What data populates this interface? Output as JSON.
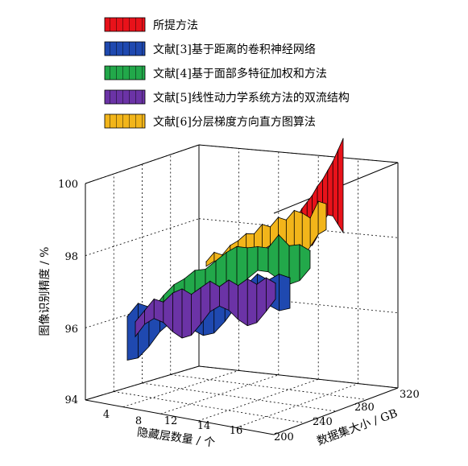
{
  "chart_data": {
    "type": "area",
    "title": "",
    "zlabel": "图像识别精度 / %",
    "xlabel": "隐藏层数量 / 个",
    "ylabel": "数据集大小 / GB",
    "zlim": [
      94,
      100
    ],
    "z_ticks": [
      "94",
      "96",
      "98",
      "100"
    ],
    "x_ticks": [
      "4",
      "8",
      "12",
      "14",
      "16"
    ],
    "y_ticks": [
      "200",
      "240",
      "280",
      "320"
    ],
    "grid": true,
    "legend_position": "top-left",
    "x": [
      4,
      5,
      6,
      7,
      8,
      9,
      10,
      11,
      12,
      13,
      14,
      15,
      16,
      17,
      18,
      19
    ],
    "series": [
      {
        "name": "所提方法",
        "color": "#e8121a",
        "values": [
          95.6,
          95.9,
          96.2,
          96.5,
          96.7,
          97.0,
          97.2,
          97.5,
          97.7,
          97.9,
          98.2,
          98.4,
          98.7,
          99.0,
          99.4,
          99.8
        ]
      },
      {
        "name": "文献[3]基于距离的卷积神经网络",
        "color": "#1f49b0",
        "values": [
          96.2,
          96.6,
          96.3,
          96.4,
          96.1,
          96.5,
          96.0,
          96.3,
          96.1,
          95.8,
          96.0,
          95.9,
          96.2,
          95.8,
          95.9,
          95.6
        ]
      },
      {
        "name": "文献[4]基于面部多特征加权和方法",
        "color": "#22a84a",
        "values": [
          96.1,
          96.5,
          96.8,
          96.9,
          97.1,
          97.0,
          97.2,
          97.4,
          97.5,
          97.3,
          97.2,
          97.0,
          97.4,
          96.8,
          96.7,
          96.3
        ]
      },
      {
        "name": "文献[5]线性动力学系统方法的双流结构",
        "color": "#6b33a6",
        "values": [
          95.0,
          95.4,
          95.8,
          95.6,
          95.9,
          96.0,
          95.7,
          95.9,
          96.1,
          95.8,
          96.0,
          95.7,
          95.9,
          95.6,
          95.8,
          95.5
        ]
      },
      {
        "name": "文献[6]分层梯度方向直方图算法",
        "color": "#f2b51a",
        "values": [
          97.3,
          97.6,
          97.4,
          97.7,
          97.8,
          98.0,
          97.9,
          98.2,
          98.0,
          98.3,
          98.1,
          98.4,
          98.2,
          97.9,
          98.5,
          98.3
        ]
      }
    ]
  }
}
